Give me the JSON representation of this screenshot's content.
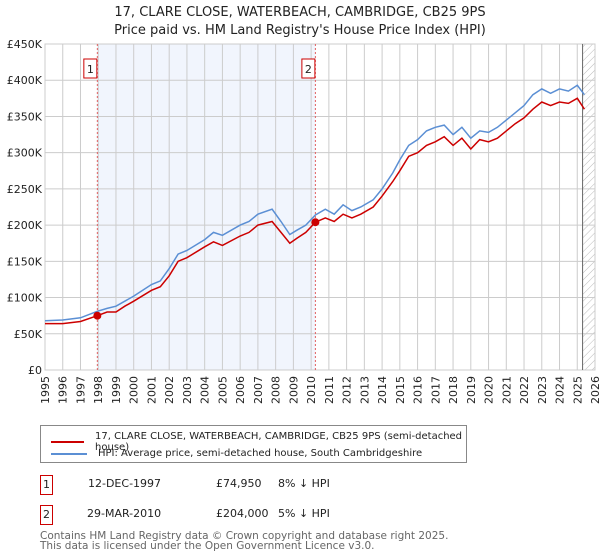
{
  "chart_data": {
    "type": "line",
    "title": "17, CLARE CLOSE, WATERBEACH, CAMBRIDGE, CB25 9PS",
    "subtitle": "Price paid vs. HM Land Registry's House Price Index (HPI)",
    "xlim": [
      1995,
      2026
    ],
    "ylim": [
      0,
      450000
    ],
    "x_ticks": [
      "1995",
      "1996",
      "1997",
      "1998",
      "1999",
      "2000",
      "2001",
      "2002",
      "2003",
      "2004",
      "2005",
      "2006",
      "2007",
      "2008",
      "2009",
      "2010",
      "2011",
      "2012",
      "2013",
      "2014",
      "2015",
      "2016",
      "2017",
      "2018",
      "2019",
      "2020",
      "2021",
      "2022",
      "2023",
      "2024",
      "2025",
      "2026"
    ],
    "y_ticks": [
      {
        "v": 0,
        "label": "£0"
      },
      {
        "v": 50000,
        "label": "£50K"
      },
      {
        "v": 100000,
        "label": "£100K"
      },
      {
        "v": 150000,
        "label": "£150K"
      },
      {
        "v": 200000,
        "label": "£200K"
      },
      {
        "v": 250000,
        "label": "£250K"
      },
      {
        "v": 300000,
        "label": "£300K"
      },
      {
        "v": 350000,
        "label": "£350K"
      },
      {
        "v": 400000,
        "label": "£400K"
      },
      {
        "v": 450000,
        "label": "£450K"
      }
    ],
    "series": [
      {
        "name": "17, CLARE CLOSE, WATERBEACH, CAMBRIDGE, CB25 9PS (semi-detached house)",
        "color": "#cc0000",
        "x": [
          1995,
          1996,
          1997,
          1997.95,
          1998.5,
          1999,
          1999.5,
          2000,
          2001,
          2001.5,
          2002,
          2002.5,
          2003,
          2004,
          2004.5,
          2005,
          2006,
          2006.5,
          2007,
          2007.8,
          2008.3,
          2008.8,
          2009.2,
          2009.7,
          2010.24,
          2010.8,
          2011.3,
          2011.8,
          2012.3,
          2012.8,
          2013.5,
          2014,
          2014.6,
          2015,
          2015.5,
          2016,
          2016.5,
          2017,
          2017.5,
          2018,
          2018.5,
          2019,
          2019.5,
          2020,
          2020.5,
          2021,
          2021.5,
          2022,
          2022.5,
          2023,
          2023.5,
          2024,
          2024.5,
          2025,
          2025.4
        ],
        "y": [
          64000,
          64000,
          67000,
          74950,
          80000,
          80000,
          88000,
          95000,
          110000,
          115000,
          130000,
          150000,
          155000,
          170000,
          177000,
          172000,
          185000,
          190000,
          200000,
          205000,
          190000,
          175000,
          182000,
          190000,
          204000,
          210000,
          205000,
          215000,
          210000,
          215000,
          225000,
          240000,
          260000,
          275000,
          295000,
          300000,
          310000,
          315000,
          322000,
          310000,
          320000,
          305000,
          318000,
          315000,
          320000,
          330000,
          340000,
          348000,
          360000,
          370000,
          365000,
          370000,
          368000,
          375000,
          360000
        ]
      },
      {
        "name": "HPI: Average price, semi-detached house, South Cambridgeshire",
        "color": "#5b8fd4",
        "x": [
          1995,
          1996,
          1997,
          1997.95,
          1998.5,
          1999,
          1999.5,
          2000,
          2001,
          2001.5,
          2002,
          2002.5,
          2003,
          2004,
          2004.5,
          2005,
          2006,
          2006.5,
          2007,
          2007.8,
          2008.3,
          2008.8,
          2009.2,
          2009.7,
          2010.24,
          2010.8,
          2011.3,
          2011.8,
          2012.3,
          2012.8,
          2013.5,
          2014,
          2014.6,
          2015,
          2015.5,
          2016,
          2016.5,
          2017,
          2017.5,
          2018,
          2018.5,
          2019,
          2019.5,
          2020,
          2020.5,
          2021,
          2021.5,
          2022,
          2022.5,
          2023,
          2023.5,
          2024,
          2024.5,
          2025,
          2025.4
        ],
        "y": [
          68000,
          69000,
          72000,
          81000,
          85000,
          88000,
          95000,
          102000,
          118000,
          123000,
          140000,
          160000,
          165000,
          180000,
          190000,
          186000,
          200000,
          205000,
          215000,
          222000,
          205000,
          187000,
          193000,
          200000,
          214000,
          222000,
          215000,
          228000,
          220000,
          225000,
          235000,
          250000,
          272000,
          290000,
          310000,
          318000,
          330000,
          335000,
          338000,
          325000,
          335000,
          320000,
          330000,
          328000,
          335000,
          345000,
          355000,
          365000,
          380000,
          388000,
          382000,
          388000,
          385000,
          393000,
          380000
        ]
      }
    ],
    "annotations": [
      {
        "label": "1",
        "x": 1997.95,
        "date": "12-DEC-1997",
        "price": "£74,950",
        "hpi_diff": "8% ↓ HPI",
        "y": 74950
      },
      {
        "label": "2",
        "x": 2010.24,
        "date": "29-MAR-2010",
        "price": "£204,000",
        "hpi_diff": "5% ↓ HPI",
        "y": 204000
      }
    ],
    "shaded_range": [
      1997.95,
      2010.24
    ],
    "hatched_from": 2025.3,
    "grid": true
  },
  "legend": {
    "items": [
      "17, CLARE CLOSE, WATERBEACH, CAMBRIDGE, CB25 9PS (semi-detached house)",
      "HPI: Average price, semi-detached house, South Cambridgeshire"
    ]
  },
  "footer": {
    "line1": "Contains HM Land Registry data © Crown copyright and database right 2025.",
    "line2": "This data is licensed under the Open Government Licence v3.0."
  }
}
